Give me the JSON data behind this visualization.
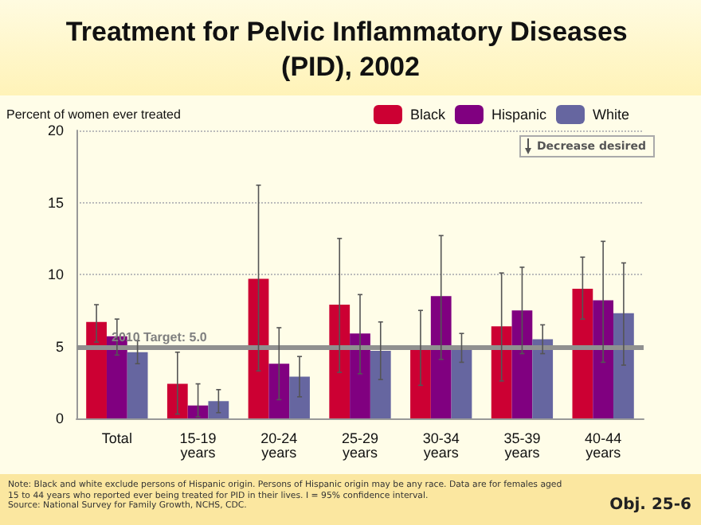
{
  "chart_data": {
    "type": "bar",
    "title": "Treatment for Pelvic Inflammatory Diseases (PID), 2002",
    "ylabel": "Percent of women ever treated",
    "categories": [
      "Total",
      "15-19 years",
      "20-24 years",
      "25-29 years",
      "30-34 years",
      "35-39 years",
      "40-44 years"
    ],
    "series": [
      {
        "name": "Black",
        "color": "#cc0033",
        "values": [
          6.7,
          2.4,
          9.7,
          7.9,
          4.9,
          6.4,
          9.0
        ],
        "errors": [
          [
            5.3,
            7.9
          ],
          [
            0.3,
            4.6
          ],
          [
            3.3,
            16.2
          ],
          [
            3.2,
            12.5
          ],
          [
            2.3,
            7.5
          ],
          [
            2.6,
            10.1
          ],
          [
            6.9,
            11.2
          ]
        ]
      },
      {
        "name": "Hispanic",
        "color": "#800080",
        "values": [
          5.7,
          0.9,
          3.8,
          5.9,
          8.5,
          7.5,
          8.2
        ],
        "errors": [
          [
            4.4,
            6.9
          ],
          [
            0.1,
            2.4
          ],
          [
            1.3,
            6.3
          ],
          [
            3.1,
            8.6
          ],
          [
            4.1,
            12.7
          ],
          [
            4.5,
            10.5
          ],
          [
            3.9,
            12.3
          ]
        ]
      },
      {
        "name": "White",
        "color": "#6666a0",
        "values": [
          4.6,
          1.2,
          2.9,
          4.7,
          4.9,
          5.5,
          7.3
        ],
        "errors": [
          [
            3.8,
            5.4
          ],
          [
            0.4,
            2.0
          ],
          [
            1.5,
            4.3
          ],
          [
            2.7,
            6.7
          ],
          [
            3.9,
            5.9
          ],
          [
            4.5,
            6.5
          ],
          [
            3.7,
            10.8
          ]
        ]
      }
    ],
    "ylim": [
      0,
      20
    ],
    "yticks": [
      0,
      5,
      10,
      15,
      20
    ],
    "grid": "y",
    "legend": "top right",
    "ref_lines": [
      {
        "axis": "y",
        "value": 5.0,
        "label": "2010 Target: 5.0",
        "color": "#909090"
      }
    ],
    "annotations": [
      "Decrease desired",
      "Note: Black and white exclude persons of Hispanic origin. Persons of Hispanic origin may be any race. Data are for females aged 15 to 44 years who reported ever being treated for PID in their lives. I = 95% confidence interval.",
      "Source: National Survey for Family Growth, NCHS, CDC.",
      "Obj. 25-6"
    ]
  }
}
